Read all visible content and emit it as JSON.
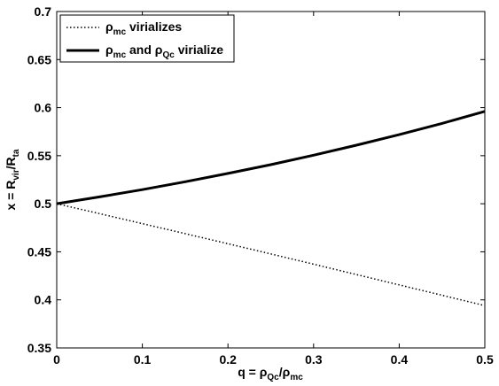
{
  "chart_data": {
    "type": "line",
    "xlabel": {
      "prefix": "q = ",
      "sym1": "ρ",
      "sub1": "Qc",
      "sep": "/",
      "sym2": "ρ",
      "sub2": "mc"
    },
    "ylabel": {
      "prefix": "x = R",
      "sub1": "vir",
      "sep": "/R",
      "sub2": "ta"
    },
    "xlim": [
      0,
      0.5
    ],
    "ylim": [
      0.35,
      0.7
    ],
    "xticks": [
      "0",
      "0.1",
      "0.2",
      "0.3",
      "0.4",
      "0.5"
    ],
    "yticks": [
      "0.35",
      "0.4",
      "0.45",
      "0.5",
      "0.55",
      "0.6",
      "0.65",
      "0.7"
    ],
    "grid": false,
    "legend_position": "top-left",
    "legend": {
      "entry1": {
        "sym": "ρ",
        "sub": "mc",
        "rest": " virializes"
      },
      "entry2": {
        "sym1": "ρ",
        "sub1": "mc",
        "mid": " and ",
        "sym2": "ρ",
        "sub2": "Qc",
        "rest": " virialize"
      }
    },
    "series": [
      {
        "style": "dotted",
        "x": [
          0,
          0.05,
          0.1,
          0.15,
          0.2,
          0.25,
          0.3,
          0.35,
          0.4,
          0.45,
          0.5
        ],
        "y": [
          0.5,
          0.4897,
          0.4793,
          0.4689,
          0.4584,
          0.4478,
          0.4371,
          0.4264,
          0.4156,
          0.4048,
          0.394
        ]
      },
      {
        "style": "solid",
        "x": [
          0,
          0.05,
          0.1,
          0.15,
          0.2,
          0.25,
          0.3,
          0.35,
          0.4,
          0.45,
          0.5
        ],
        "y": [
          0.5,
          0.5071,
          0.5147,
          0.5229,
          0.5315,
          0.5407,
          0.5505,
          0.5609,
          0.5719,
          0.5836,
          0.5961
        ]
      }
    ]
  }
}
